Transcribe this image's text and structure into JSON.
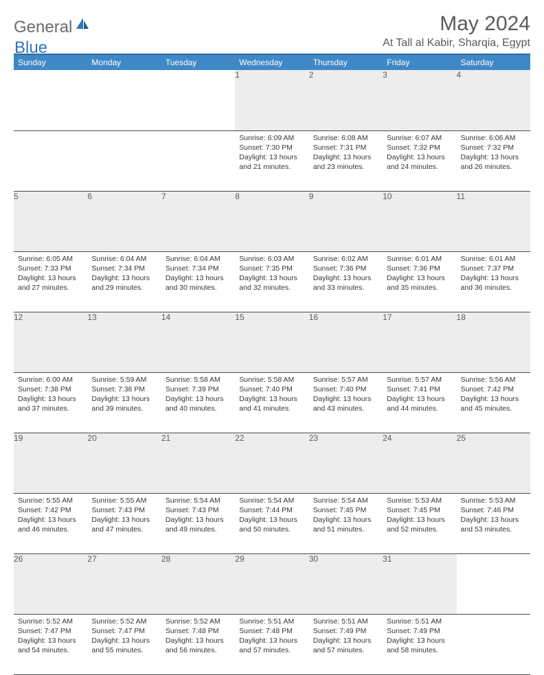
{
  "brand": {
    "part1": "General",
    "part2": "Blue"
  },
  "title": "May 2024",
  "location": "At Tall al Kabir, Sharqia, Egypt",
  "colors": {
    "header_bg": "#3f88c5",
    "header_border": "#2f6a9a",
    "daynum_bg": "#ededed",
    "text_muted": "#5a5a5a",
    "text_body": "#363636",
    "row_divider": "#4a4a4a",
    "brand_blue": "#2f77b8"
  },
  "weekdays": [
    "Sunday",
    "Monday",
    "Tuesday",
    "Wednesday",
    "Thursday",
    "Friday",
    "Saturday"
  ],
  "weeks": [
    {
      "nums": [
        "",
        "",
        "",
        "1",
        "2",
        "3",
        "4"
      ],
      "cells": [
        null,
        null,
        null,
        {
          "sunrise": "Sunrise: 6:09 AM",
          "sunset": "Sunset: 7:30 PM",
          "day1": "Daylight: 13 hours",
          "day2": "and 21 minutes."
        },
        {
          "sunrise": "Sunrise: 6:08 AM",
          "sunset": "Sunset: 7:31 PM",
          "day1": "Daylight: 13 hours",
          "day2": "and 23 minutes."
        },
        {
          "sunrise": "Sunrise: 6:07 AM",
          "sunset": "Sunset: 7:32 PM",
          "day1": "Daylight: 13 hours",
          "day2": "and 24 minutes."
        },
        {
          "sunrise": "Sunrise: 6:06 AM",
          "sunset": "Sunset: 7:32 PM",
          "day1": "Daylight: 13 hours",
          "day2": "and 26 minutes."
        }
      ]
    },
    {
      "nums": [
        "5",
        "6",
        "7",
        "8",
        "9",
        "10",
        "11"
      ],
      "cells": [
        {
          "sunrise": "Sunrise: 6:05 AM",
          "sunset": "Sunset: 7:33 PM",
          "day1": "Daylight: 13 hours",
          "day2": "and 27 minutes."
        },
        {
          "sunrise": "Sunrise: 6:04 AM",
          "sunset": "Sunset: 7:34 PM",
          "day1": "Daylight: 13 hours",
          "day2": "and 29 minutes."
        },
        {
          "sunrise": "Sunrise: 6:04 AM",
          "sunset": "Sunset: 7:34 PM",
          "day1": "Daylight: 13 hours",
          "day2": "and 30 minutes."
        },
        {
          "sunrise": "Sunrise: 6:03 AM",
          "sunset": "Sunset: 7:35 PM",
          "day1": "Daylight: 13 hours",
          "day2": "and 32 minutes."
        },
        {
          "sunrise": "Sunrise: 6:02 AM",
          "sunset": "Sunset: 7:36 PM",
          "day1": "Daylight: 13 hours",
          "day2": "and 33 minutes."
        },
        {
          "sunrise": "Sunrise: 6:01 AM",
          "sunset": "Sunset: 7:36 PM",
          "day1": "Daylight: 13 hours",
          "day2": "and 35 minutes."
        },
        {
          "sunrise": "Sunrise: 6:01 AM",
          "sunset": "Sunset: 7:37 PM",
          "day1": "Daylight: 13 hours",
          "day2": "and 36 minutes."
        }
      ]
    },
    {
      "nums": [
        "12",
        "13",
        "14",
        "15",
        "16",
        "17",
        "18"
      ],
      "cells": [
        {
          "sunrise": "Sunrise: 6:00 AM",
          "sunset": "Sunset: 7:38 PM",
          "day1": "Daylight: 13 hours",
          "day2": "and 37 minutes."
        },
        {
          "sunrise": "Sunrise: 5:59 AM",
          "sunset": "Sunset: 7:38 PM",
          "day1": "Daylight: 13 hours",
          "day2": "and 39 minutes."
        },
        {
          "sunrise": "Sunrise: 5:58 AM",
          "sunset": "Sunset: 7:39 PM",
          "day1": "Daylight: 13 hours",
          "day2": "and 40 minutes."
        },
        {
          "sunrise": "Sunrise: 5:58 AM",
          "sunset": "Sunset: 7:40 PM",
          "day1": "Daylight: 13 hours",
          "day2": "and 41 minutes."
        },
        {
          "sunrise": "Sunrise: 5:57 AM",
          "sunset": "Sunset: 7:40 PM",
          "day1": "Daylight: 13 hours",
          "day2": "and 43 minutes."
        },
        {
          "sunrise": "Sunrise: 5:57 AM",
          "sunset": "Sunset: 7:41 PM",
          "day1": "Daylight: 13 hours",
          "day2": "and 44 minutes."
        },
        {
          "sunrise": "Sunrise: 5:56 AM",
          "sunset": "Sunset: 7:42 PM",
          "day1": "Daylight: 13 hours",
          "day2": "and 45 minutes."
        }
      ]
    },
    {
      "nums": [
        "19",
        "20",
        "21",
        "22",
        "23",
        "24",
        "25"
      ],
      "cells": [
        {
          "sunrise": "Sunrise: 5:55 AM",
          "sunset": "Sunset: 7:42 PM",
          "day1": "Daylight: 13 hours",
          "day2": "and 46 minutes."
        },
        {
          "sunrise": "Sunrise: 5:55 AM",
          "sunset": "Sunset: 7:43 PM",
          "day1": "Daylight: 13 hours",
          "day2": "and 47 minutes."
        },
        {
          "sunrise": "Sunrise: 5:54 AM",
          "sunset": "Sunset: 7:43 PM",
          "day1": "Daylight: 13 hours",
          "day2": "and 49 minutes."
        },
        {
          "sunrise": "Sunrise: 5:54 AM",
          "sunset": "Sunset: 7:44 PM",
          "day1": "Daylight: 13 hours",
          "day2": "and 50 minutes."
        },
        {
          "sunrise": "Sunrise: 5:54 AM",
          "sunset": "Sunset: 7:45 PM",
          "day1": "Daylight: 13 hours",
          "day2": "and 51 minutes."
        },
        {
          "sunrise": "Sunrise: 5:53 AM",
          "sunset": "Sunset: 7:45 PM",
          "day1": "Daylight: 13 hours",
          "day2": "and 52 minutes."
        },
        {
          "sunrise": "Sunrise: 5:53 AM",
          "sunset": "Sunset: 7:46 PM",
          "day1": "Daylight: 13 hours",
          "day2": "and 53 minutes."
        }
      ]
    },
    {
      "nums": [
        "26",
        "27",
        "28",
        "29",
        "30",
        "31",
        ""
      ],
      "cells": [
        {
          "sunrise": "Sunrise: 5:52 AM",
          "sunset": "Sunset: 7:47 PM",
          "day1": "Daylight: 13 hours",
          "day2": "and 54 minutes."
        },
        {
          "sunrise": "Sunrise: 5:52 AM",
          "sunset": "Sunset: 7:47 PM",
          "day1": "Daylight: 13 hours",
          "day2": "and 55 minutes."
        },
        {
          "sunrise": "Sunrise: 5:52 AM",
          "sunset": "Sunset: 7:48 PM",
          "day1": "Daylight: 13 hours",
          "day2": "and 56 minutes."
        },
        {
          "sunrise": "Sunrise: 5:51 AM",
          "sunset": "Sunset: 7:48 PM",
          "day1": "Daylight: 13 hours",
          "day2": "and 57 minutes."
        },
        {
          "sunrise": "Sunrise: 5:51 AM",
          "sunset": "Sunset: 7:49 PM",
          "day1": "Daylight: 13 hours",
          "day2": "and 57 minutes."
        },
        {
          "sunrise": "Sunrise: 5:51 AM",
          "sunset": "Sunset: 7:49 PM",
          "day1": "Daylight: 13 hours",
          "day2": "and 58 minutes."
        },
        null
      ]
    }
  ]
}
